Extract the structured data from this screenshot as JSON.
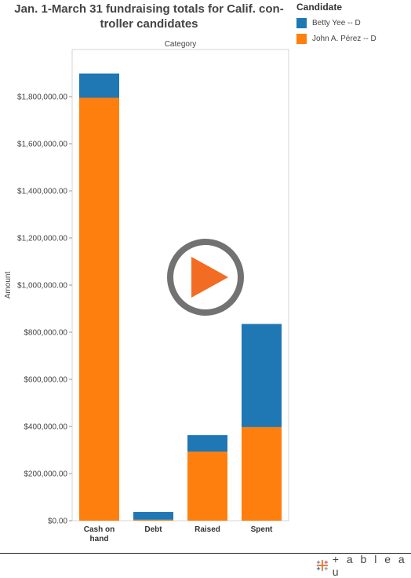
{
  "title": "Jan. 1-March 31 fundraising totals for Calif. con-troller candidates",
  "legend": {
    "title": "Candidate",
    "items": [
      {
        "label": "Betty Yee -- D",
        "color": "#1f77b4"
      },
      {
        "label": "John A. Pérez -- D",
        "color": "#ff7f0e"
      }
    ]
  },
  "chart_data": {
    "type": "bar",
    "stacked": true,
    "column_header": "Category",
    "ylabel": "Amount",
    "categories": [
      "Cash on hand",
      "Debt",
      "Raised",
      "Spent"
    ],
    "series": [
      {
        "name": "John A. Pérez -- D",
        "color": "#ff7f0e",
        "values": [
          1795000,
          4000,
          293000,
          397000
        ]
      },
      {
        "name": "Betty Yee -- D",
        "color": "#1f77b4",
        "values": [
          103000,
          33000,
          70000,
          438000
        ]
      }
    ],
    "ylim": [
      0,
      2000000
    ],
    "yticks": [
      0,
      200000,
      400000,
      600000,
      800000,
      1000000,
      1200000,
      1400000,
      1600000,
      1800000
    ],
    "ytick_labels": [
      "$0.00",
      "$200,000.00",
      "$400,000.00",
      "$600,000.00",
      "$800,000.00",
      "$1,000,000.00",
      "$1,200,000.00",
      "$1,400,000.00",
      "$1,600,000.00",
      "$1,800,000.00"
    ],
    "xtick_labels": [
      [
        "Cash on",
        "hand"
      ],
      [
        "Debt"
      ],
      [
        "Raised"
      ],
      [
        "Spent"
      ]
    ],
    "grid": false,
    "legend_position": "top-right"
  },
  "overlay": {
    "icon": "play-button-icon"
  },
  "branding": {
    "name": "+ a b l e a u"
  }
}
